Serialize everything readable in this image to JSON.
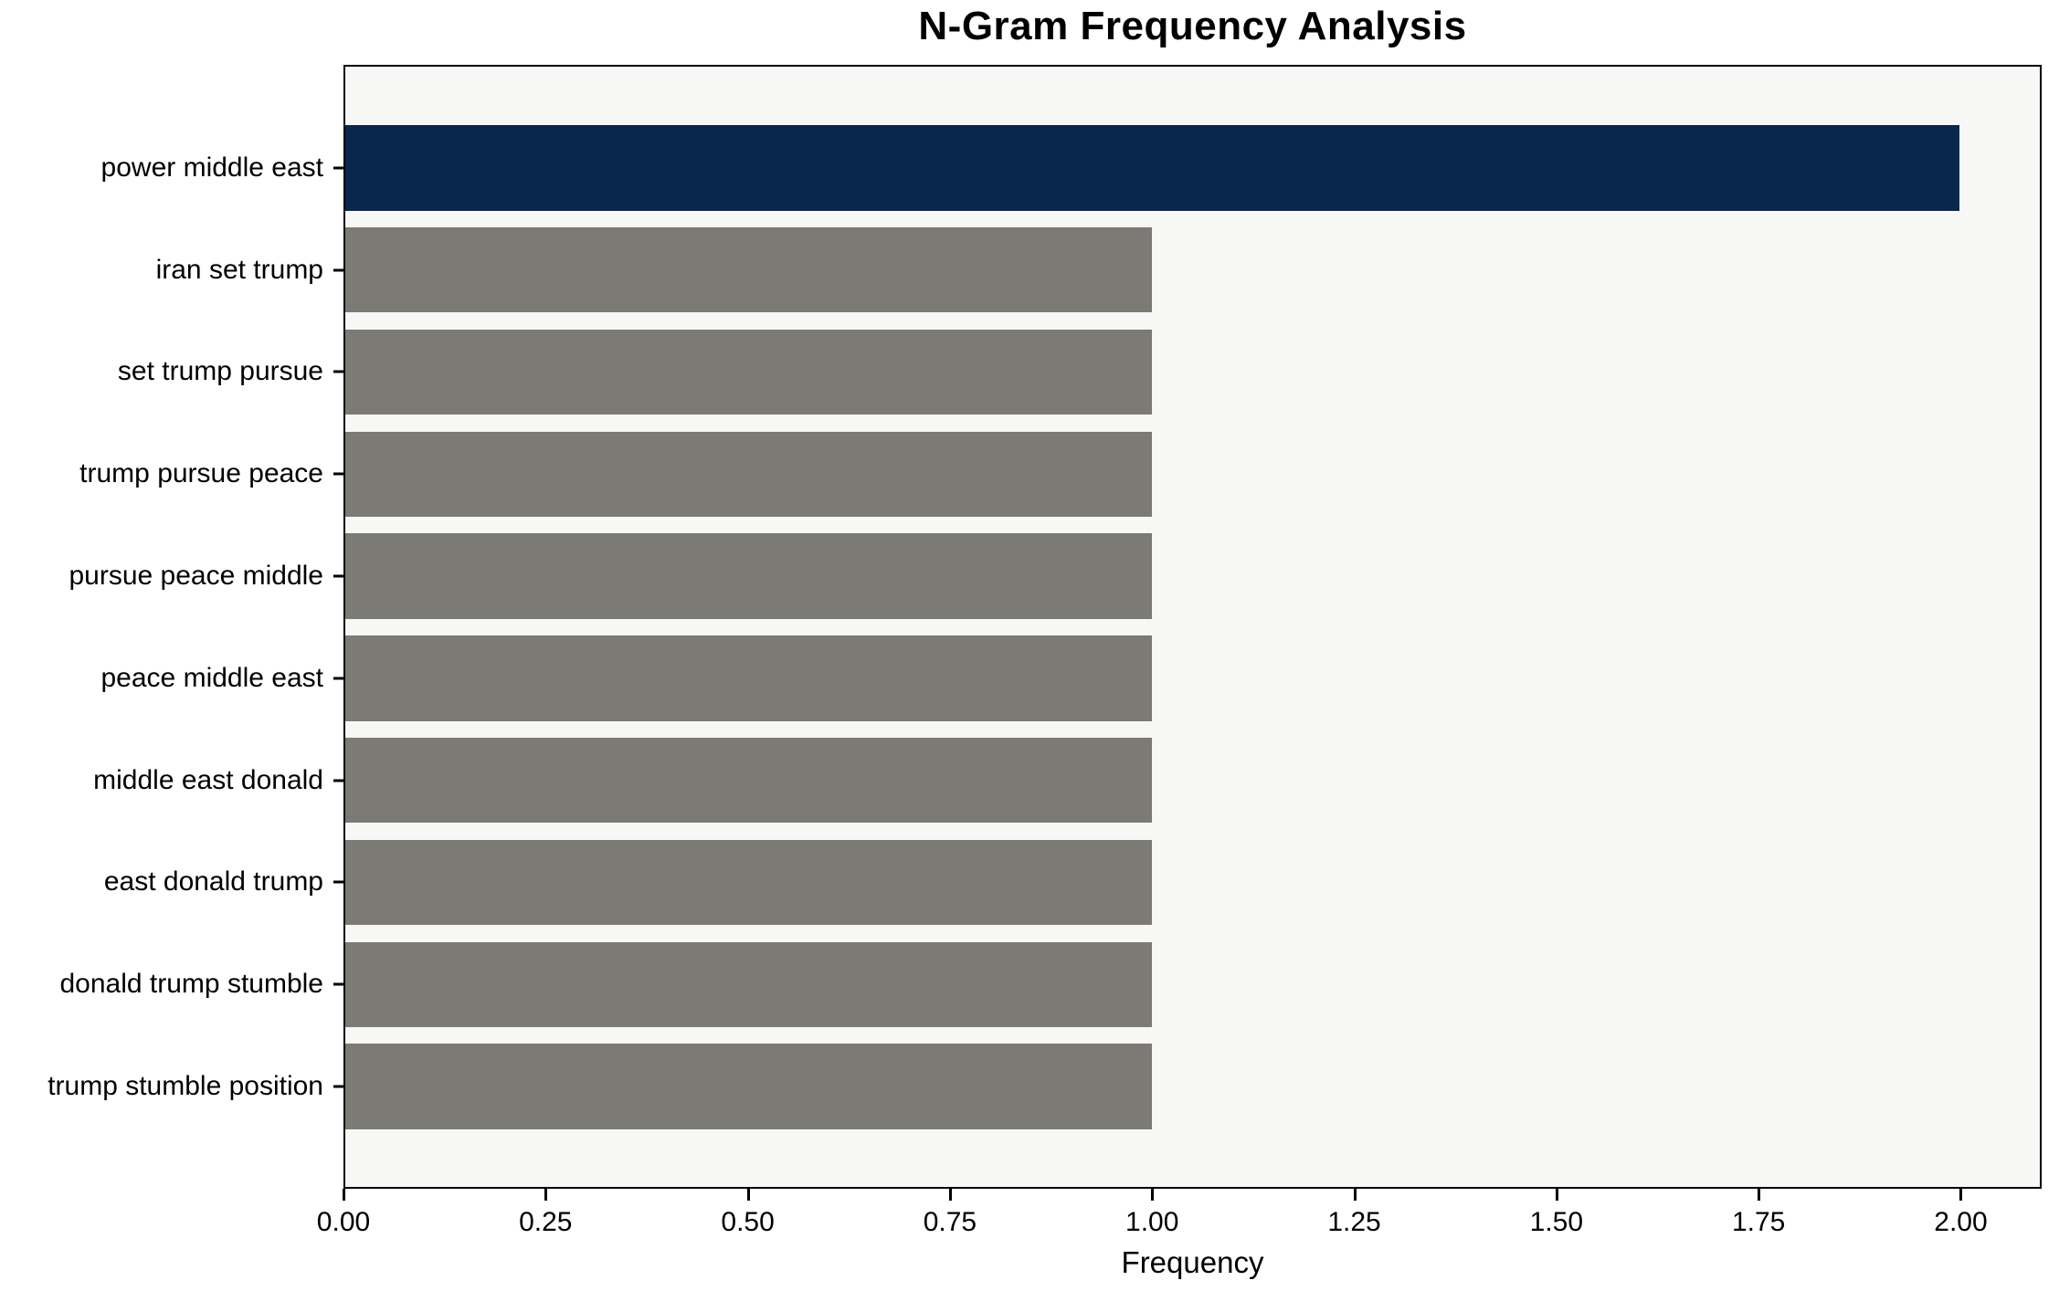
{
  "figure": {
    "background": "#ffffff",
    "plot_background": "#f7f7f6",
    "axis_color": "#000000"
  },
  "chart_data": {
    "type": "bar",
    "orientation": "horizontal",
    "title": "N-Gram Frequency Analysis",
    "xlabel": "Frequency",
    "ylabel": "",
    "categories": [
      "power middle east",
      "iran set trump",
      "set trump pursue",
      "trump pursue peace",
      "pursue peace middle",
      "peace middle east",
      "middle east donald",
      "east donald trump",
      "donald trump stumble",
      "trump stumble position"
    ],
    "values": [
      2,
      1,
      1,
      1,
      1,
      1,
      1,
      1,
      1,
      1
    ],
    "bar_colors": [
      "#09264d",
      "#7b7a75",
      "#7b7a75",
      "#7b7a75",
      "#7b7a75",
      "#7b7a75",
      "#7b7a75",
      "#7b7a75",
      "#7b7a75",
      "#7b7a75"
    ],
    "xlim": [
      0,
      2.1
    ],
    "xticks": {
      "values": [
        0,
        0.25,
        0.5,
        0.75,
        1.0,
        1.25,
        1.5,
        1.75,
        2.0
      ],
      "labels": [
        "0.00",
        "0.25",
        "0.50",
        "0.75",
        "1.00",
        "1.25",
        "1.50",
        "1.75",
        "2.00"
      ]
    },
    "grid": false,
    "legend_visible": false
  }
}
